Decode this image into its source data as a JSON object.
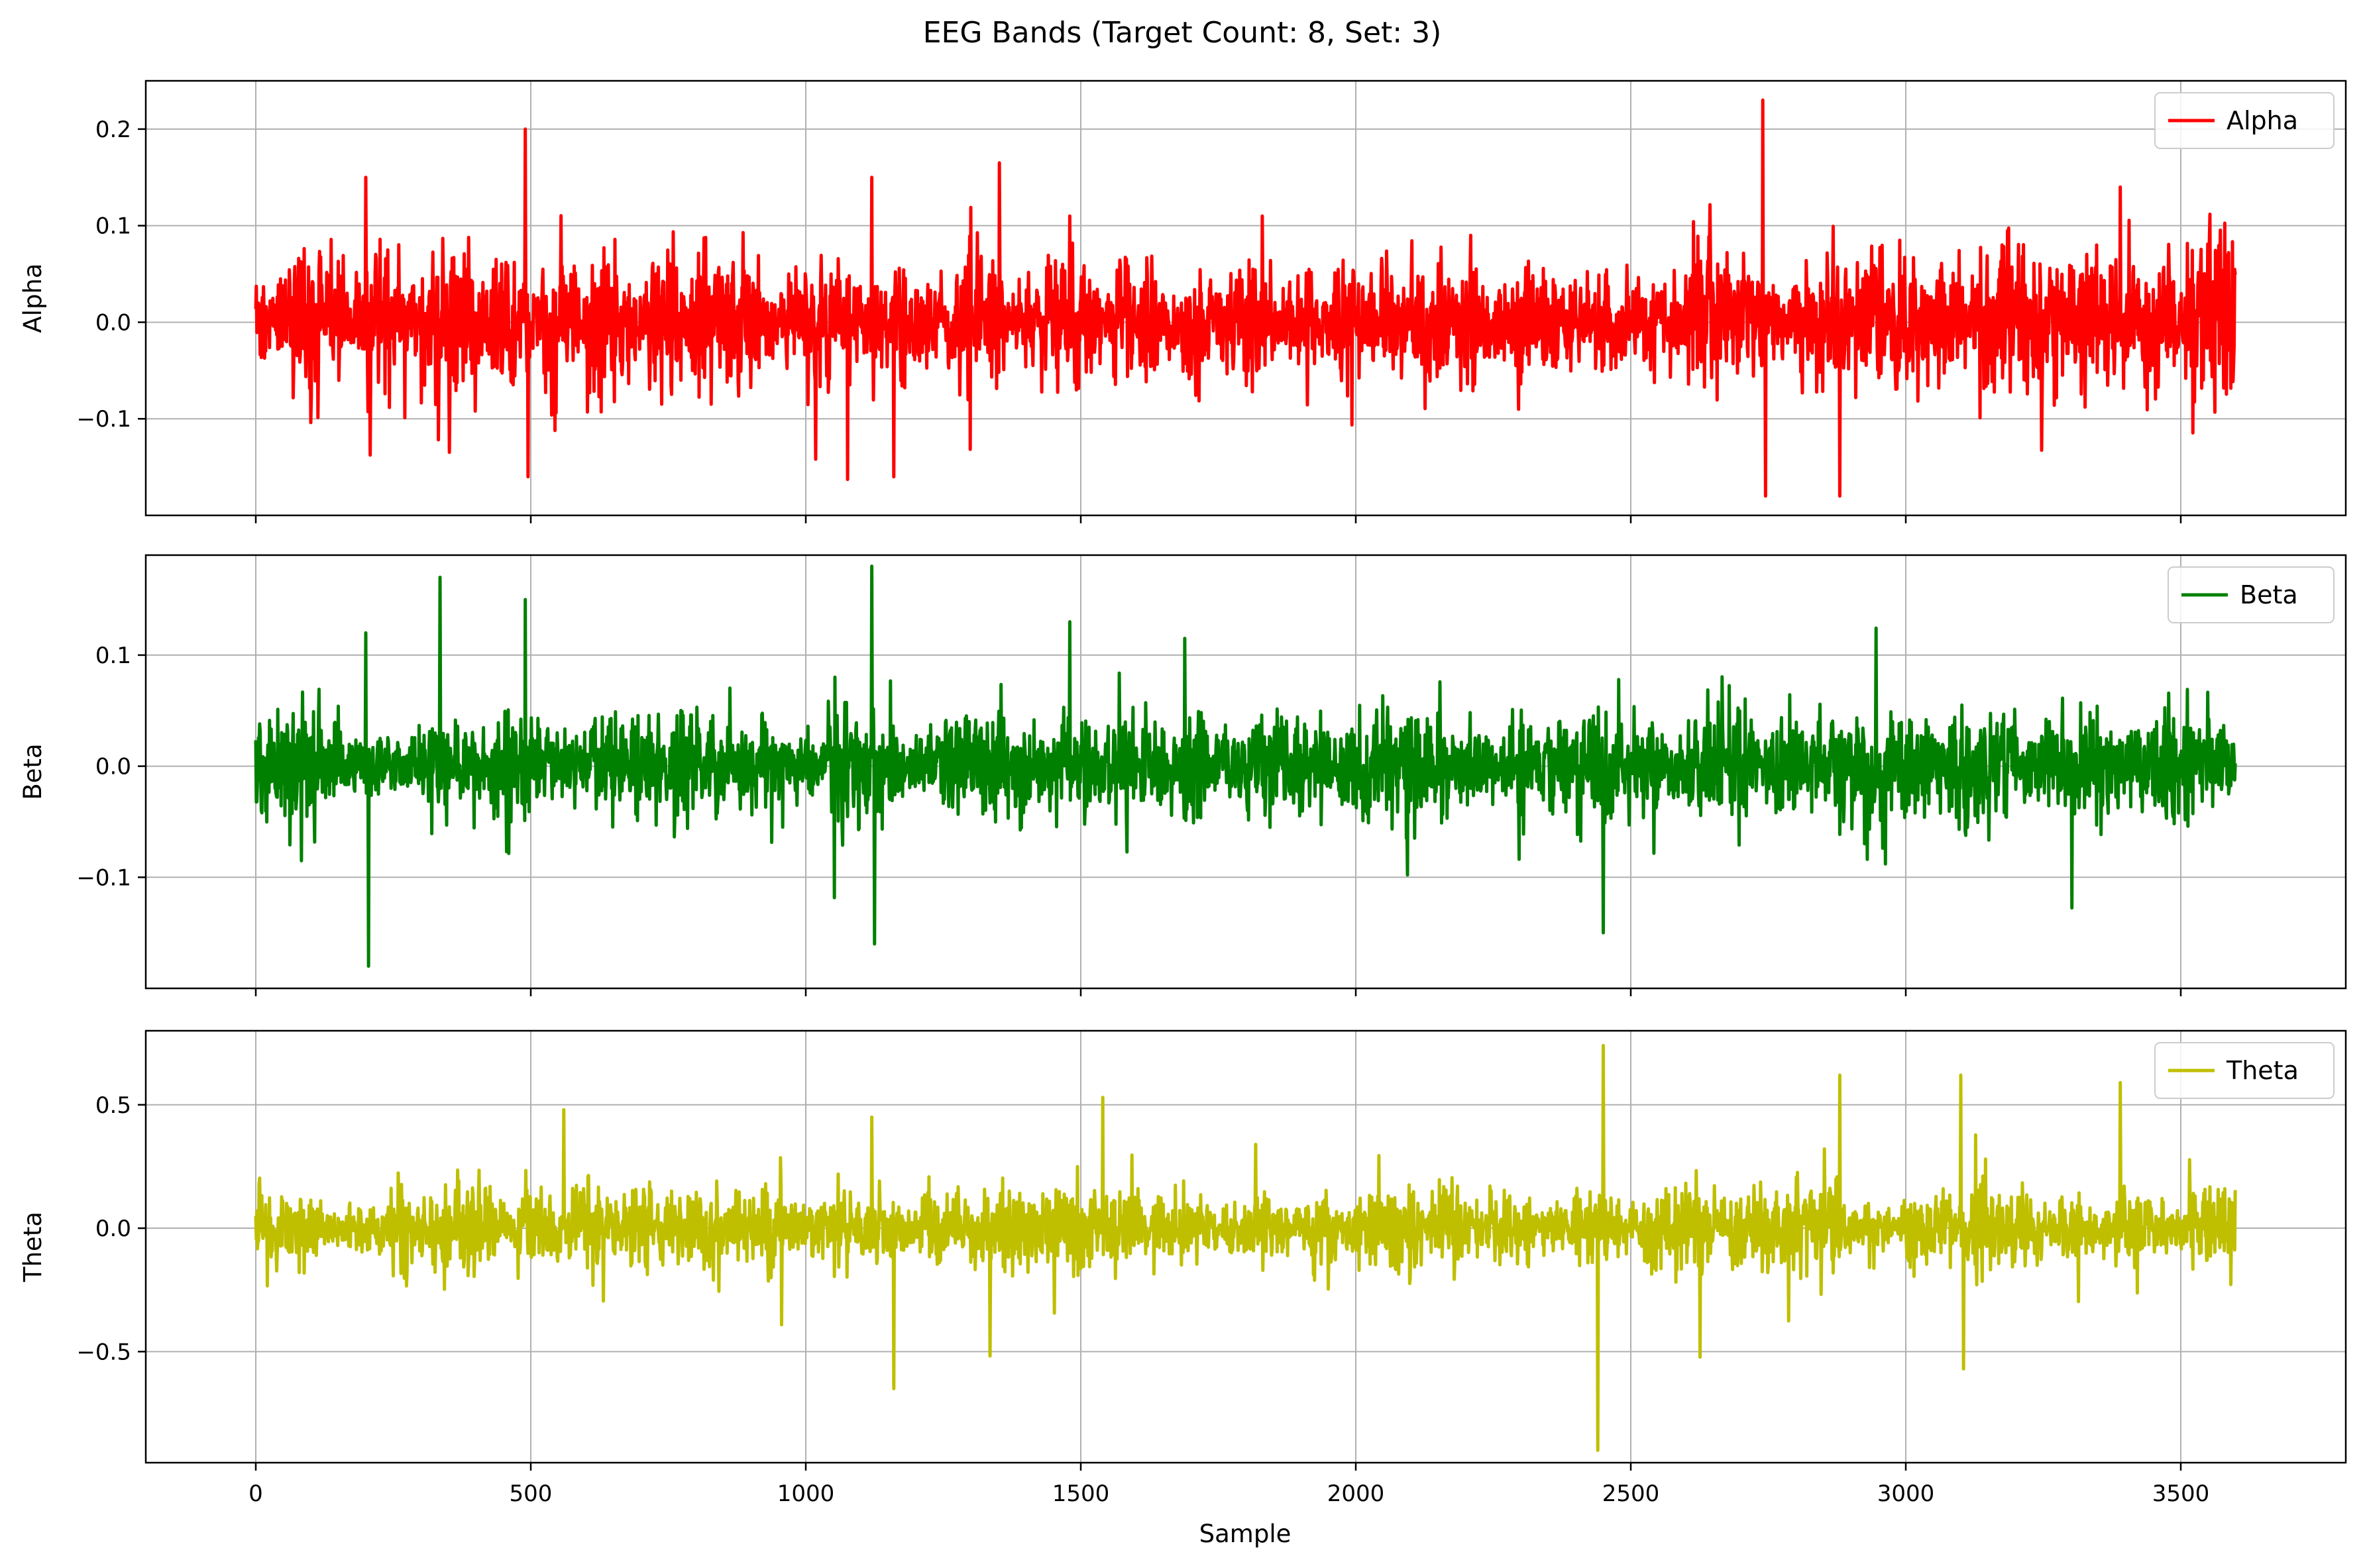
{
  "chart_data": {
    "type": "line",
    "title": "EEG Bands (Target Count: 8, Set: 3)",
    "xlabel": "Sample",
    "xlim": [
      -200,
      3800
    ],
    "x_ticks": [
      0,
      500,
      1000,
      1500,
      2000,
      2500,
      3000,
      3500
    ],
    "x_tick_labels": [
      "0",
      "500",
      "1000",
      "1500",
      "2000",
      "2500",
      "3000",
      "3500"
    ],
    "grid": true,
    "sample_count": 3600,
    "panels": [
      {
        "ylabel": "Alpha",
        "ylim": [
          -0.2,
          0.25
        ],
        "y_ticks": [
          -0.1,
          0.0,
          0.1,
          0.2
        ],
        "y_tick_labels": [
          "−0.1",
          "0.0",
          "0.1",
          "0.2"
        ],
        "series": [
          {
            "name": "Alpha",
            "color": "#ff0000",
            "typical_amplitude": 0.03,
            "peaks": [
              [
                200,
                0.15
              ],
              [
                490,
                0.2
              ],
              [
                495,
                -0.16
              ],
              [
                1120,
                0.15
              ],
              [
                1160,
                -0.16
              ],
              [
                1480,
                0.11
              ],
              [
                1830,
                0.11
              ],
              [
                2740,
                0.23
              ],
              [
                2745,
                -0.18
              ],
              [
                2880,
                -0.18
              ],
              [
                3390,
                0.14
              ]
            ]
          }
        ],
        "legend": {
          "label": "Alpha",
          "position": "upper-right"
        }
      },
      {
        "ylabel": "Beta",
        "ylim": [
          -0.2,
          0.19
        ],
        "y_ticks": [
          -0.1,
          0.0,
          0.1
        ],
        "y_tick_labels": [
          "−0.1",
          "0.0",
          "0.1"
        ],
        "series": [
          {
            "name": "Beta",
            "color": "#008000",
            "typical_amplitude": 0.02,
            "peaks": [
              [
                200,
                0.12
              ],
              [
                205,
                -0.18
              ],
              [
                335,
                0.17
              ],
              [
                490,
                0.15
              ],
              [
                1120,
                0.18
              ],
              [
                1125,
                -0.16
              ],
              [
                1480,
                0.13
              ],
              [
                2450,
                -0.15
              ]
            ]
          }
        ],
        "legend": {
          "label": "Beta",
          "position": "upper-right"
        }
      },
      {
        "ylabel": "Theta",
        "ylim": [
          -0.95,
          0.8
        ],
        "y_ticks": [
          -0.5,
          0.0,
          0.5
        ],
        "y_tick_labels": [
          "−0.5",
          "0.0",
          "0.5"
        ],
        "series": [
          {
            "name": "Theta",
            "color": "#bfbf00",
            "typical_amplitude": 0.07,
            "peaks": [
              [
                560,
                0.48
              ],
              [
                1120,
                0.45
              ],
              [
                1160,
                -0.65
              ],
              [
                1540,
                0.53
              ],
              [
                2440,
                -0.9
              ],
              [
                2450,
                0.74
              ],
              [
                2880,
                0.62
              ],
              [
                3100,
                0.62
              ],
              [
                3105,
                -0.57
              ],
              [
                3390,
                0.59
              ]
            ]
          }
        ],
        "legend": {
          "label": "Theta",
          "position": "upper-right"
        }
      }
    ]
  }
}
